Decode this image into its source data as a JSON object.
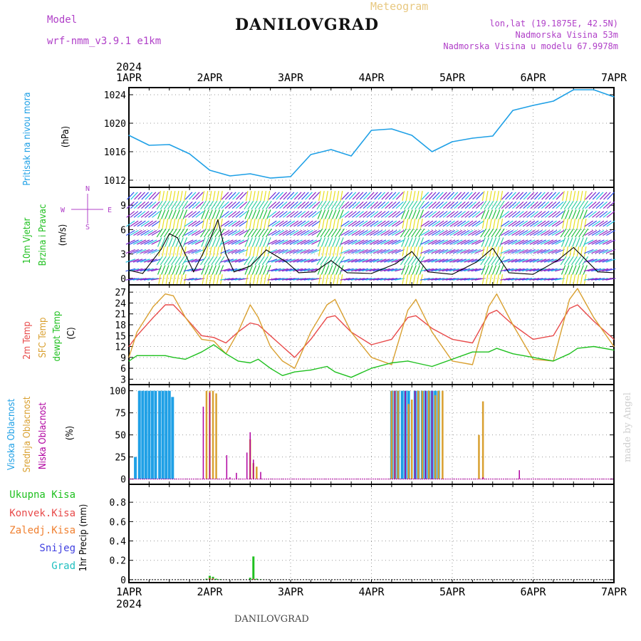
{
  "header": {
    "model_label": "Model",
    "model_name": "wrf-nmm_v3.9.1  e1km",
    "station": "DANILOVGRAD",
    "product": "Meteogram",
    "coords": "lon,lat (19.1875E, 42.5N)",
    "altitude": "Nadmorska Visina 53m",
    "model_altitude": "Nadmorska Visina u modelu 67.9978m",
    "footer_station": "DANILOVGRAD",
    "credit": "made by Angel"
  },
  "colors": {
    "pressure": "#1fa0e6",
    "wind_label": "#1fc01f",
    "wind_compass": "#b040c8",
    "temp2m": "#e84a4a",
    "sfc": "#d9a030",
    "dewpt": "#1fc01f",
    "cloud_high": "#1fa0e6",
    "cloud_mid": "#d9a030",
    "cloud_low": "#b000a0",
    "precip_total": "#1fc01f",
    "precip_conv": "#e84a4a",
    "precip_frz": "#f08030",
    "precip_snow": "#4040e0",
    "precip_hail": "#20c0c0",
    "credit": "#d0d0d0",
    "product": "#e8c880",
    "meta": "#b040c8"
  },
  "time_axis": {
    "year": "2024",
    "labels": [
      "1APR",
      "2APR",
      "3APR",
      "4APR",
      "5APR",
      "6APR",
      "7APR"
    ]
  },
  "chart_data": [
    {
      "id": "pressure",
      "type": "line",
      "ylabel": [
        "Pritisak na nivou mora",
        "(hPa)"
      ],
      "ylim": [
        1011,
        1025
      ],
      "yticks": [
        1012,
        1016,
        1020,
        1024
      ],
      "grid": true,
      "x": [
        0,
        0.25,
        0.5,
        0.75,
        1.0,
        1.25,
        1.5,
        1.75,
        2.0,
        2.25,
        2.5,
        2.75,
        3.0,
        3.25,
        3.5,
        3.75,
        4.0,
        4.25,
        4.5,
        4.75,
        5.0,
        5.25,
        5.5,
        5.75,
        6.0
      ],
      "series": [
        {
          "values": [
            1018.3,
            1016.9,
            1017.0,
            1015.7,
            1013.4,
            1012.6,
            1012.9,
            1012.3,
            1012.5,
            1015.6,
            1016.3,
            1015.4,
            1019.0,
            1019.2,
            1018.3,
            1016.0,
            1017.4,
            1017.9,
            1018.2,
            1021.8,
            1022.5,
            1023.1,
            1024.7,
            1024.7,
            1023.7
          ]
        }
      ]
    },
    {
      "id": "wind",
      "type": "line",
      "ylabel": [
        "10m Vjetar",
        "Brzina i Pravac",
        "(m/s)"
      ],
      "compass": {
        "n": "N",
        "s": "S",
        "e": "E",
        "w": "W"
      },
      "ylim": [
        -0.8,
        11.2
      ],
      "yticks": [
        0,
        3,
        6,
        9
      ],
      "grid": true,
      "x": [
        0,
        0.17,
        0.4,
        0.5,
        0.6,
        0.8,
        1.0,
        1.1,
        1.2,
        1.3,
        1.5,
        1.7,
        1.95,
        2.1,
        2.3,
        2.5,
        2.7,
        3.0,
        3.3,
        3.5,
        3.7,
        4.0,
        4.3,
        4.5,
        4.7,
        5.0,
        5.3,
        5.5,
        5.8,
        6.0
      ],
      "series": [
        {
          "values": [
            1.0,
            0.6,
            3.6,
            5.5,
            5.0,
            0.8,
            4.7,
            7.2,
            3.0,
            0.8,
            1.5,
            3.5,
            2.0,
            0.7,
            0.8,
            2.2,
            0.7,
            0.6,
            1.8,
            3.3,
            0.8,
            0.5,
            2.0,
            3.7,
            0.7,
            0.5,
            2.2,
            3.8,
            0.8,
            0.7
          ]
        }
      ],
      "arrow_bands": [
        {
          "x_start": 0.35,
          "x_end": 0.7,
          "dir": "N",
          "band": "green"
        },
        {
          "x_start": 0.9,
          "x_end": 1.15,
          "dir": "N",
          "band": "green"
        },
        {
          "x_start": 1.45,
          "x_end": 1.75,
          "dir": "N",
          "band": "green"
        },
        {
          "x_start": 2.35,
          "x_end": 2.65,
          "dir": "N",
          "band": "green"
        },
        {
          "x_start": 3.35,
          "x_end": 3.65,
          "dir": "N",
          "band": "green"
        },
        {
          "x_start": 4.35,
          "x_end": 4.65,
          "dir": "N",
          "band": "green"
        },
        {
          "x_start": 5.35,
          "x_end": 5.65,
          "dir": "N",
          "band": "green"
        }
      ]
    },
    {
      "id": "temperature",
      "type": "line",
      "ylabel": [
        "2m Temp",
        "SFC Temp",
        "dewpt Temp",
        "(C)"
      ],
      "ylim": [
        1.5,
        29
      ],
      "yticks": [
        3,
        6,
        9,
        12,
        15,
        18,
        21,
        24,
        27
      ],
      "grid": true,
      "x": [
        0,
        0.1,
        0.3,
        0.45,
        0.55,
        0.7,
        0.9,
        1.05,
        1.2,
        1.35,
        1.5,
        1.6,
        1.75,
        1.9,
        2.05,
        2.25,
        2.45,
        2.55,
        2.75,
        3.0,
        3.25,
        3.45,
        3.55,
        3.75,
        4.0,
        4.25,
        4.45,
        4.55,
        4.75,
        5.0,
        5.25,
        5.45,
        5.55,
        5.75,
        6.0
      ],
      "series": [
        {
          "name": "2m Temp",
          "values": [
            12,
            15,
            20,
            23.5,
            23.5,
            20,
            15,
            14.5,
            13,
            16,
            18.5,
            18,
            15,
            12,
            9,
            14,
            20,
            20.5,
            16,
            12.5,
            14,
            20,
            20.5,
            17,
            14,
            13,
            21,
            22,
            18,
            14,
            15,
            22.5,
            23.5,
            19,
            14
          ]
        },
        {
          "name": "SFC Temp",
          "values": [
            9,
            16,
            23,
            26.5,
            26,
            20,
            14,
            13.5,
            10,
            16,
            23.5,
            20,
            12,
            8,
            6,
            16,
            23.5,
            25,
            16,
            9,
            7,
            22,
            25,
            16,
            8,
            7,
            23,
            26.5,
            18,
            8.5,
            8,
            25,
            28,
            20,
            12
          ]
        },
        {
          "name": "dewpt Temp",
          "values": [
            8,
            9.5,
            9.5,
            9.5,
            9,
            8.5,
            10.5,
            12.5,
            10,
            8,
            7.5,
            8.5,
            6,
            4,
            5,
            5.5,
            6.5,
            5,
            3.5,
            6,
            7.5,
            8,
            7.5,
            6.5,
            8.5,
            10.5,
            10.5,
            11.5,
            10,
            9,
            8,
            10,
            11.5,
            12,
            11
          ]
        }
      ]
    },
    {
      "id": "clouds",
      "type": "bar",
      "ylabel": [
        "Visoka Oblacnost",
        "Srednja Oblacnost",
        "Niska Oblacnost",
        "(%)"
      ],
      "ylim": [
        -6,
        107
      ],
      "yticks": [
        0,
        25,
        50,
        75,
        100
      ],
      "grid": true,
      "series": [
        {
          "name": "Visoka Oblacnost",
          "x": [
            0.08,
            0.13,
            0.17,
            0.21,
            0.25,
            0.29,
            0.33,
            0.38,
            0.42,
            0.46,
            0.5,
            0.54,
            3.25,
            3.29,
            3.33,
            3.38,
            3.42,
            3.46,
            3.54,
            3.58,
            3.63,
            3.67,
            3.71,
            3.75,
            3.79,
            3.83
          ],
          "values": [
            25,
            100,
            100,
            100,
            100,
            100,
            100,
            100,
            100,
            100,
            100,
            93,
            100,
            100,
            100,
            100,
            100,
            100,
            100,
            100,
            100,
            100,
            100,
            100,
            100,
            100
          ]
        },
        {
          "name": "Srednja Oblacnost",
          "x": [
            0.96,
            1.0,
            1.04,
            1.08,
            1.5,
            1.54,
            1.58,
            3.25,
            3.29,
            3.33,
            3.46,
            3.5,
            3.58,
            3.63,
            3.71,
            3.79,
            3.83,
            3.88,
            4.33,
            4.38
          ],
          "values": [
            100,
            100,
            100,
            97,
            45,
            18,
            14,
            100,
            100,
            100,
            85,
            90,
            100,
            100,
            100,
            95,
            100,
            100,
            50,
            88
          ]
        },
        {
          "name": "Niska Oblacnost",
          "x": [
            0.92,
            1.0,
            1.21,
            1.25,
            1.33,
            1.46,
            1.5,
            1.54,
            1.63,
            3.29,
            3.42,
            3.54,
            3.67,
            3.75,
            4.38,
            4.83
          ],
          "values": [
            82,
            98,
            27,
            2,
            7,
            30,
            53,
            22,
            8,
            100,
            100,
            100,
            100,
            100,
            2,
            10
          ]
        }
      ]
    },
    {
      "id": "precip",
      "type": "bar",
      "ylabel": [
        "1hr Precip (mm)"
      ],
      "legend": [
        "Ukupna Kisa",
        "Konvek.Kisa",
        "Zaledj.Kisa",
        "Snijeg",
        "Grad"
      ],
      "ylim": [
        -0.03,
        0.985
      ],
      "yticks": [
        0,
        0.2,
        0.4,
        0.6,
        0.8
      ],
      "grid": true,
      "series": [
        {
          "name": "Ukupna Kisa",
          "x": [
            0.96,
            1.0,
            1.04,
            1.08,
            1.13,
            1.5,
            1.54,
            1.58,
            1.63
          ],
          "values": [
            0.01,
            0.04,
            0.03,
            0.01,
            0.005,
            0.02,
            0.24,
            0.01,
            0.005
          ]
        },
        {
          "name": "Konvek.Kisa",
          "x": [
            1.0,
            1.04,
            1.54
          ],
          "values": [
            0.02,
            0.015,
            0.01
          ]
        }
      ]
    }
  ]
}
